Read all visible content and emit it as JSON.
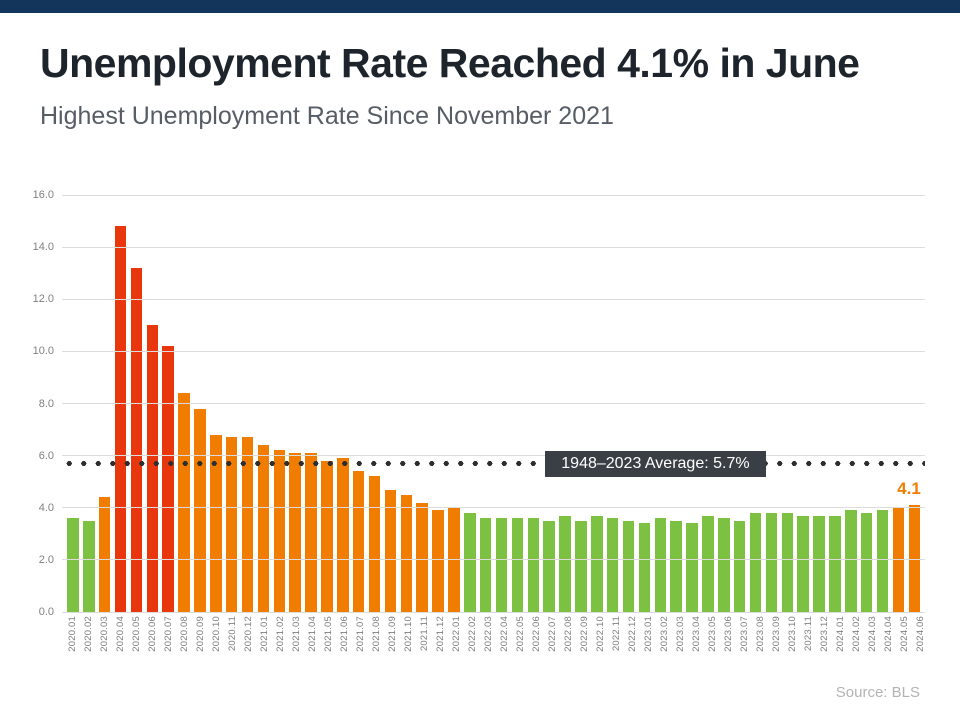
{
  "page": {
    "title": "Unemployment Rate Reached 4.1% in June",
    "subtitle": "Highest Unemployment Rate Since November 2021",
    "source": "Source: BLS",
    "topbar_color": "#14355b"
  },
  "chart_data": {
    "type": "bar",
    "title": "Unemployment Rate Reached 4.1% in June",
    "subtitle": "Highest Unemployment Rate Since November 2021",
    "xlabel": "",
    "ylabel": "",
    "ylim": [
      0,
      16
    ],
    "ytick_labels": [
      "0.0",
      "2.0",
      "4.0",
      "6.0",
      "8.0",
      "10.0",
      "12.0",
      "14.0",
      "16.0"
    ],
    "grid": true,
    "legend": false,
    "categories": [
      "2020.01",
      "2020.02",
      "2020.03",
      "2020.04",
      "2020.05",
      "2020.06",
      "2020.07",
      "2020.08",
      "2020.09",
      "2020.10",
      "2020.11",
      "2020.12",
      "2021.01",
      "2021.02",
      "2021.03",
      "2021.04",
      "2021.05",
      "2021.06",
      "2021.07",
      "2021.08",
      "2021.09",
      "2021.10",
      "2021.11",
      "2021.12",
      "2022.01",
      "2022.02",
      "2022.03",
      "2022.04",
      "2022.05",
      "2022.06",
      "2022.07",
      "2022.08",
      "2022.09",
      "2022.10",
      "2022.11",
      "2022.12",
      "2023.01",
      "2023.02",
      "2023.03",
      "2023.04",
      "2023.05",
      "2023.06",
      "2023.07",
      "2023.08",
      "2023.09",
      "2023.10",
      "2023.11",
      "2023.12",
      "2024.01",
      "2024.02",
      "2024.03",
      "2024.04",
      "2024.05",
      "2024.06"
    ],
    "values": [
      3.6,
      3.5,
      4.4,
      14.8,
      13.2,
      11.0,
      10.2,
      8.4,
      7.8,
      6.8,
      6.7,
      6.7,
      6.4,
      6.2,
      6.1,
      6.1,
      5.8,
      5.9,
      5.4,
      5.2,
      4.7,
      4.5,
      4.2,
      3.9,
      4.0,
      3.8,
      3.6,
      3.6,
      3.6,
      3.6,
      3.5,
      3.7,
      3.5,
      3.7,
      3.6,
      3.5,
      3.4,
      3.6,
      3.5,
      3.4,
      3.7,
      3.6,
      3.5,
      3.8,
      3.8,
      3.8,
      3.7,
      3.7,
      3.7,
      3.9,
      3.8,
      3.9,
      4.0,
      4.1
    ],
    "bar_colors": [
      "green",
      "green",
      "orange",
      "red",
      "red",
      "red",
      "red",
      "orange",
      "orange",
      "orange",
      "orange",
      "orange",
      "orange",
      "orange",
      "orange",
      "orange",
      "orange",
      "orange",
      "orange",
      "orange",
      "orange",
      "orange",
      "orange",
      "orange",
      "orange",
      "green",
      "green",
      "green",
      "green",
      "green",
      "green",
      "green",
      "green",
      "green",
      "green",
      "green",
      "green",
      "green",
      "green",
      "green",
      "green",
      "green",
      "green",
      "green",
      "green",
      "green",
      "green",
      "green",
      "green",
      "green",
      "green",
      "green",
      "orange",
      "orange"
    ],
    "palette": {
      "red": "#e8360d",
      "orange": "#f07d00",
      "green": "#7dc142"
    },
    "average_line": {
      "value": 5.7,
      "label": "1948–2023 Average: 5.7%",
      "dot_color": "#2e2e2e",
      "label_bg": "#3a3f45"
    },
    "last_value_label": {
      "text": "4.1",
      "color": "#f07d00"
    }
  }
}
